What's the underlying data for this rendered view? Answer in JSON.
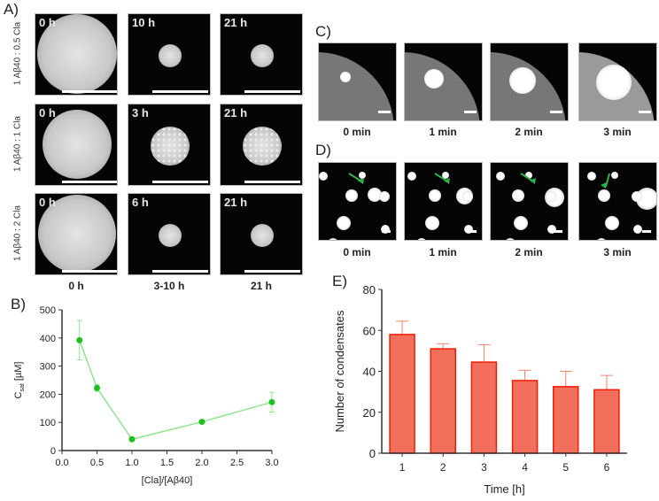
{
  "panels": {
    "a": {
      "label": "A)",
      "rows": [
        {
          "label": "1 Aβ40 : 0.5 Cla",
          "times": [
            "0 h",
            "10 h",
            "21 h"
          ]
        },
        {
          "label": "1 Aβ40 : 1 Cla",
          "times": [
            "0 h",
            "3 h",
            "21 h"
          ]
        },
        {
          "label": "1 Aβ40 : 2 Cla",
          "times": [
            "0 h",
            "6 h",
            "21 h"
          ]
        }
      ],
      "columns": [
        "0 h",
        "3-10 h",
        "21 h"
      ]
    },
    "c": {
      "label": "C)",
      "times": [
        "0 min",
        "1 min",
        "2 min",
        "3 min"
      ]
    },
    "d": {
      "label": "D)",
      "times": [
        "0 min",
        "1 min",
        "2 min",
        "3 min"
      ],
      "arrow_color": "#2db34a"
    }
  },
  "chart_data": [
    {
      "id": "B",
      "label": "B)",
      "type": "line",
      "xlabel": "[Cla]/[Aβ40]",
      "ylabel_main": "C",
      "ylabel_sub": "sat",
      "ylabel_unit": " [µM]",
      "xlim": [
        0,
        3
      ],
      "ylim": [
        0,
        500
      ],
      "xticks": [
        "0.0",
        "0.5",
        "1.0",
        "1.5",
        "2.0",
        "2.5",
        "3.0"
      ],
      "yticks": [
        "0",
        "100",
        "200",
        "300",
        "400",
        "500"
      ],
      "x": [
        0.25,
        0.5,
        1.0,
        2.0,
        3.0
      ],
      "y": [
        392,
        222,
        40,
        102,
        172
      ],
      "error": [
        70,
        12,
        5,
        5,
        35
      ],
      "color": "#1fbf1f",
      "line_color": "#8fe38f"
    },
    {
      "id": "E",
      "label": "E)",
      "type": "bar",
      "xlabel": "Time [h]",
      "ylabel": "Number of condensates",
      "categories": [
        "1",
        "2",
        "3",
        "4",
        "5",
        "6"
      ],
      "values": [
        58,
        51,
        44.5,
        35.5,
        32.5,
        31
      ],
      "error": [
        6.5,
        2.5,
        8.5,
        5,
        7.5,
        7
      ],
      "ylim": [
        0,
        80
      ],
      "yticks": [
        "0",
        "20",
        "40",
        "60",
        "80"
      ],
      "fill": "#f26f5c",
      "stroke": "#f21c05",
      "error_color": "#f5806f"
    }
  ]
}
